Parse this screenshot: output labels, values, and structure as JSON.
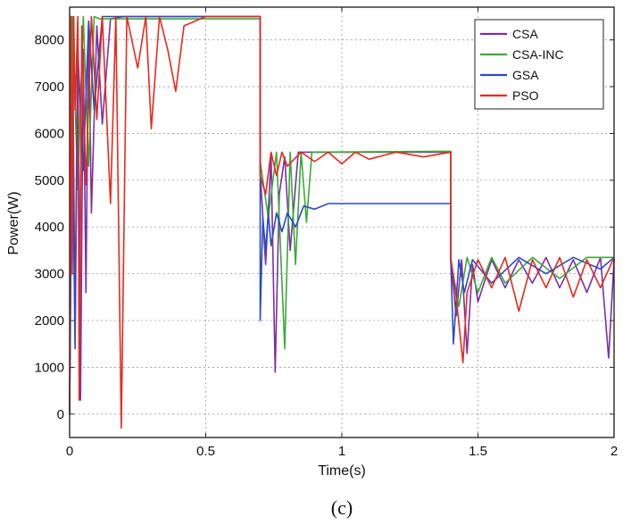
{
  "chart_data": {
    "type": "line",
    "title": "",
    "caption": "(c)",
    "xlabel": "Time(s)",
    "ylabel": "Power(W)",
    "xlim": [
      0,
      2
    ],
    "ylim": [
      -500,
      8700
    ],
    "xticks": [
      0,
      0.5,
      1,
      1.5,
      2
    ],
    "xtick_labels": [
      "0",
      "0.5",
      "1",
      "1.5",
      "2"
    ],
    "yticks": [
      0,
      1000,
      2000,
      3000,
      4000,
      5000,
      6000,
      7000,
      8000
    ],
    "ytick_labels": [
      "0",
      "1000",
      "2000",
      "3000",
      "4000",
      "5000",
      "6000",
      "7000",
      "8000"
    ],
    "grid": true,
    "legend_position": "top-right",
    "series": [
      {
        "name": "CSA",
        "color": "#7b2fa8",
        "points": [
          [
            0,
            0
          ],
          [
            0.01,
            8500
          ],
          [
            0.02,
            2000
          ],
          [
            0.03,
            8200
          ],
          [
            0.04,
            300
          ],
          [
            0.05,
            7800
          ],
          [
            0.06,
            2600
          ],
          [
            0.07,
            8400
          ],
          [
            0.08,
            4300
          ],
          [
            0.1,
            8300
          ],
          [
            0.12,
            6200
          ],
          [
            0.15,
            8450
          ],
          [
            0.2,
            8500
          ],
          [
            0.7,
            8500
          ],
          [
            0.7,
            5200
          ],
          [
            0.72,
            3200
          ],
          [
            0.74,
            5500
          ],
          [
            0.755,
            900
          ],
          [
            0.77,
            4700
          ],
          [
            0.79,
            5500
          ],
          [
            0.81,
            3500
          ],
          [
            0.84,
            5600
          ],
          [
            0.9,
            5600
          ],
          [
            1.4,
            5600
          ],
          [
            1.4,
            3300
          ],
          [
            1.42,
            2100
          ],
          [
            1.44,
            3300
          ],
          [
            1.46,
            1300
          ],
          [
            1.48,
            3200
          ],
          [
            1.5,
            2400
          ],
          [
            1.55,
            3300
          ],
          [
            1.6,
            2700
          ],
          [
            1.65,
            3300
          ],
          [
            1.7,
            2800
          ],
          [
            1.75,
            3350
          ],
          [
            1.8,
            2700
          ],
          [
            1.85,
            3300
          ],
          [
            1.9,
            2600
          ],
          [
            1.95,
            3350
          ],
          [
            1.98,
            1200
          ],
          [
            2,
            3300
          ]
        ]
      },
      {
        "name": "CSA-INC",
        "color": "#3aaa35",
        "points": [
          [
            0,
            0
          ],
          [
            0.01,
            8500
          ],
          [
            0.03,
            4800
          ],
          [
            0.05,
            8500
          ],
          [
            0.07,
            5300
          ],
          [
            0.09,
            8500
          ],
          [
            0.11,
            8450
          ],
          [
            0.7,
            8450
          ],
          [
            0.7,
            5400
          ],
          [
            0.73,
            4200
          ],
          [
            0.76,
            5600
          ],
          [
            0.79,
            1400
          ],
          [
            0.81,
            5600
          ],
          [
            0.83,
            3200
          ],
          [
            0.85,
            5600
          ],
          [
            0.87,
            4100
          ],
          [
            0.89,
            5600
          ],
          [
            1.4,
            5620
          ],
          [
            1.4,
            3300
          ],
          [
            1.43,
            2300
          ],
          [
            1.46,
            3350
          ],
          [
            1.5,
            2600
          ],
          [
            1.55,
            3350
          ],
          [
            1.6,
            2800
          ],
          [
            1.7,
            3350
          ],
          [
            1.8,
            2900
          ],
          [
            1.9,
            3350
          ],
          [
            2,
            3350
          ]
        ]
      },
      {
        "name": "GSA",
        "color": "#2b4bc2",
        "points": [
          [
            0,
            0
          ],
          [
            0.01,
            6500
          ],
          [
            0.02,
            1400
          ],
          [
            0.03,
            7800
          ],
          [
            0.05,
            5200
          ],
          [
            0.07,
            8400
          ],
          [
            0.09,
            6500
          ],
          [
            0.12,
            8500
          ],
          [
            0.7,
            8500
          ],
          [
            0.7,
            2000
          ],
          [
            0.71,
            4200
          ],
          [
            0.72,
            3500
          ],
          [
            0.73,
            4300
          ],
          [
            0.74,
            3600
          ],
          [
            0.76,
            4300
          ],
          [
            0.78,
            3900
          ],
          [
            0.8,
            4300
          ],
          [
            0.83,
            4000
          ],
          [
            0.86,
            4450
          ],
          [
            0.9,
            4380
          ],
          [
            0.95,
            4500
          ],
          [
            1,
            4500
          ],
          [
            1.4,
            4500
          ],
          [
            1.4,
            3300
          ],
          [
            1.41,
            1500
          ],
          [
            1.43,
            3300
          ],
          [
            1.45,
            2600
          ],
          [
            1.48,
            3300
          ],
          [
            1.55,
            2800
          ],
          [
            1.65,
            3350
          ],
          [
            1.75,
            3000
          ],
          [
            1.85,
            3350
          ],
          [
            1.95,
            3100
          ],
          [
            2,
            3350
          ]
        ]
      },
      {
        "name": "PSO",
        "color": "#e8291c",
        "points": [
          [
            0,
            0
          ],
          [
            0.005,
            8500
          ],
          [
            0.01,
            3000
          ],
          [
            0.015,
            8500
          ],
          [
            0.02,
            6500
          ],
          [
            0.03,
            8500
          ],
          [
            0.035,
            300
          ],
          [
            0.045,
            8300
          ],
          [
            0.06,
            4900
          ],
          [
            0.08,
            8500
          ],
          [
            0.1,
            6300
          ],
          [
            0.12,
            8500
          ],
          [
            0.15,
            4500
          ],
          [
            0.17,
            8500
          ],
          [
            0.19,
            -300
          ],
          [
            0.21,
            8500
          ],
          [
            0.25,
            7400
          ],
          [
            0.28,
            8500
          ],
          [
            0.3,
            6100
          ],
          [
            0.33,
            8500
          ],
          [
            0.36,
            7800
          ],
          [
            0.39,
            6900
          ],
          [
            0.42,
            8300
          ],
          [
            0.5,
            8500
          ],
          [
            0.7,
            8500
          ],
          [
            0.7,
            5100
          ],
          [
            0.72,
            4700
          ],
          [
            0.74,
            5600
          ],
          [
            0.76,
            5100
          ],
          [
            0.78,
            5600
          ],
          [
            0.8,
            5300
          ],
          [
            0.85,
            5600
          ],
          [
            0.9,
            5400
          ],
          [
            0.95,
            5600
          ],
          [
            1,
            5350
          ],
          [
            1.05,
            5600
          ],
          [
            1.1,
            5450
          ],
          [
            1.2,
            5600
          ],
          [
            1.3,
            5500
          ],
          [
            1.4,
            5600
          ],
          [
            1.4,
            3350
          ],
          [
            1.42,
            2500
          ],
          [
            1.445,
            1100
          ],
          [
            1.46,
            2600
          ],
          [
            1.5,
            3300
          ],
          [
            1.55,
            2700
          ],
          [
            1.6,
            3350
          ],
          [
            1.65,
            2200
          ],
          [
            1.7,
            3300
          ],
          [
            1.75,
            2700
          ],
          [
            1.8,
            3350
          ],
          [
            1.85,
            2500
          ],
          [
            1.9,
            3300
          ],
          [
            1.95,
            2700
          ],
          [
            2,
            3350
          ]
        ]
      }
    ]
  }
}
